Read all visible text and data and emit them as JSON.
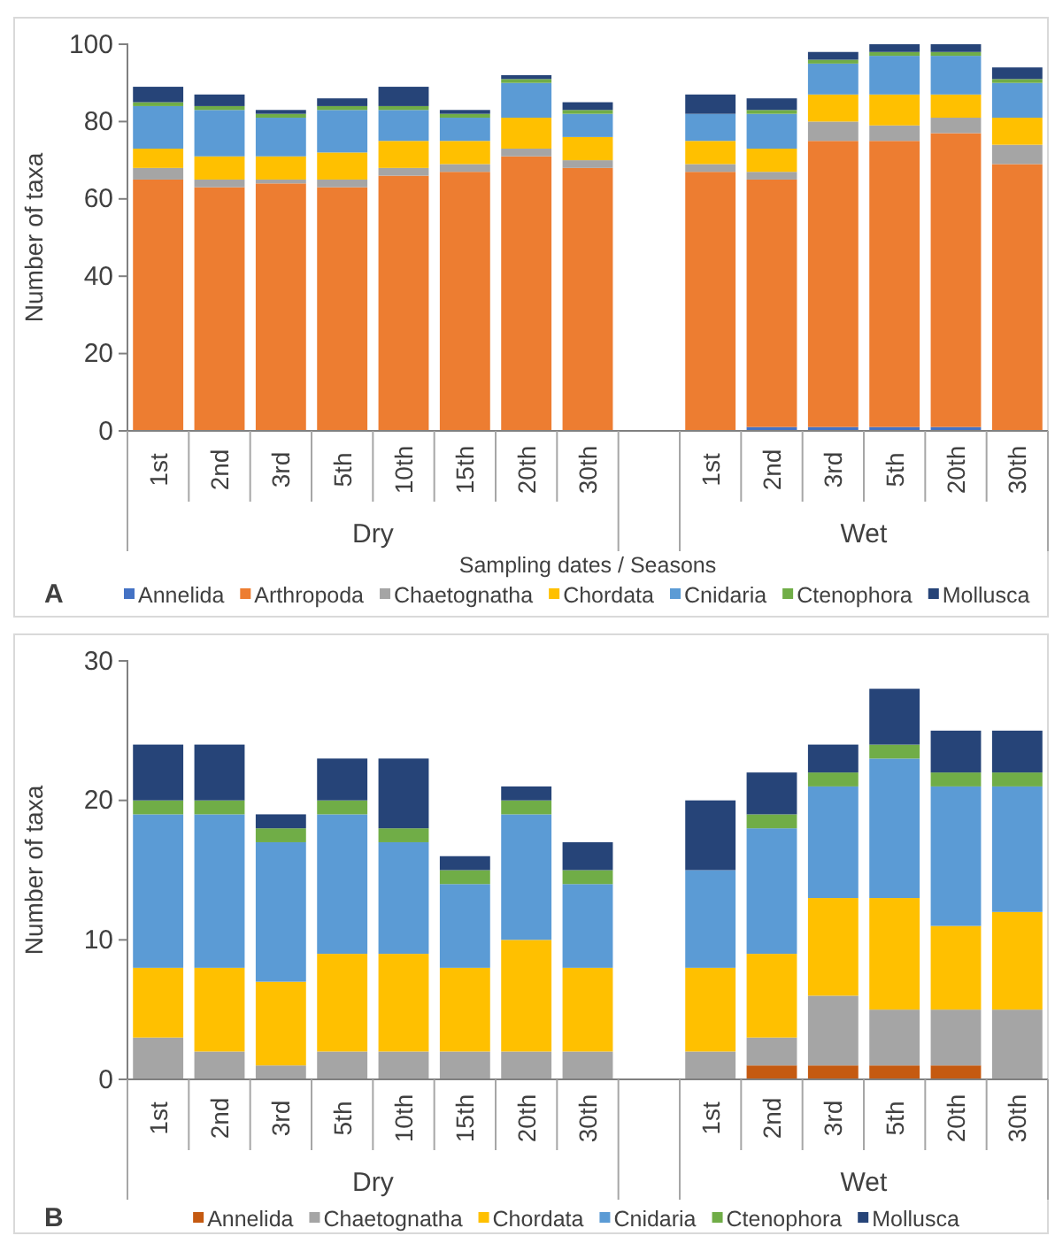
{
  "chart_data": [
    {
      "type": "bar",
      "stacked": true,
      "ylabel": "Number of taxa",
      "xlabel": "Sampling dates / Seasons",
      "legend": "bottom",
      "ylim": [
        0,
        100
      ],
      "yticks": [
        0,
        20,
        40,
        60,
        80,
        100
      ],
      "categories": [
        "1st",
        "2nd",
        "3rd",
        "5th",
        "10th",
        "15th",
        "20th",
        "30th",
        null,
        "1st",
        "2nd",
        "3rd",
        "5th",
        "20th",
        "30th"
      ],
      "annotations": [
        "Dry",
        "Wet",
        "A"
      ],
      "series": [
        {
          "name": "Annelida",
          "color": "#4472c4",
          "values": [
            0,
            0,
            0,
            0,
            0,
            0,
            0,
            0,
            null,
            0,
            1,
            1,
            1,
            1,
            0
          ]
        },
        {
          "name": "Arthropoda",
          "color": "#ed7d31",
          "values": [
            65,
            63,
            64,
            63,
            66,
            67,
            71,
            68,
            null,
            67,
            64,
            74,
            74,
            76,
            69
          ]
        },
        {
          "name": "Chaetognatha",
          "color": "#a5a5a5",
          "values": [
            3,
            2,
            1,
            2,
            2,
            2,
            2,
            2,
            null,
            2,
            2,
            5,
            4,
            4,
            5
          ]
        },
        {
          "name": "Chordata",
          "color": "#ffc000",
          "values": [
            5,
            6,
            6,
            7,
            7,
            6,
            8,
            6,
            null,
            6,
            6,
            7,
            8,
            6,
            7
          ]
        },
        {
          "name": "Cnidaria",
          "color": "#5b9bd5",
          "values": [
            11,
            12,
            10,
            11,
            8,
            6,
            9,
            6,
            null,
            7,
            9,
            8,
            10,
            10,
            9
          ]
        },
        {
          "name": "Ctenophora",
          "color": "#70ad47",
          "values": [
            1,
            1,
            1,
            1,
            1,
            1,
            1,
            1,
            null,
            0,
            1,
            1,
            1,
            1,
            1
          ]
        },
        {
          "name": "Mollusca",
          "color": "#264478",
          "values": [
            4,
            3,
            1,
            2,
            5,
            1,
            1,
            2,
            null,
            5,
            3,
            2,
            2,
            2,
            3
          ]
        }
      ]
    },
    {
      "type": "bar",
      "stacked": true,
      "ylabel": "Number of taxa",
      "legend": "bottom",
      "ylim": [
        0,
        30
      ],
      "yticks": [
        0,
        10,
        20,
        30
      ],
      "categories": [
        "1st",
        "2nd",
        "3rd",
        "5th",
        "10th",
        "15th",
        "20th",
        "30th",
        null,
        "1st",
        "2nd",
        "3rd",
        "5th",
        "20th",
        "30th"
      ],
      "annotations": [
        "Dry",
        "Wet",
        "B"
      ],
      "series": [
        {
          "name": "Annelida",
          "color": "#c55a11",
          "values": [
            0,
            0,
            0,
            0,
            0,
            0,
            0,
            0,
            null,
            0,
            1,
            1,
            1,
            1,
            0
          ]
        },
        {
          "name": "Chaetognatha",
          "color": "#a5a5a5",
          "values": [
            3,
            2,
            1,
            2,
            2,
            2,
            2,
            2,
            null,
            2,
            2,
            5,
            4,
            4,
            5
          ]
        },
        {
          "name": "Chordata",
          "color": "#ffc000",
          "values": [
            5,
            6,
            6,
            7,
            7,
            6,
            8,
            6,
            null,
            6,
            6,
            7,
            8,
            6,
            7
          ]
        },
        {
          "name": "Cnidaria",
          "color": "#5b9bd5",
          "values": [
            11,
            11,
            10,
            10,
            8,
            6,
            9,
            6,
            null,
            7,
            9,
            8,
            10,
            10,
            9
          ]
        },
        {
          "name": "Ctenophora",
          "color": "#70ad47",
          "values": [
            1,
            1,
            1,
            1,
            1,
            1,
            1,
            1,
            null,
            0,
            1,
            1,
            1,
            1,
            1
          ]
        },
        {
          "name": "Mollusca",
          "color": "#264478",
          "values": [
            4,
            4,
            1,
            3,
            5,
            1,
            1,
            2,
            null,
            5,
            3,
            2,
            4,
            3,
            3
          ]
        }
      ]
    }
  ]
}
